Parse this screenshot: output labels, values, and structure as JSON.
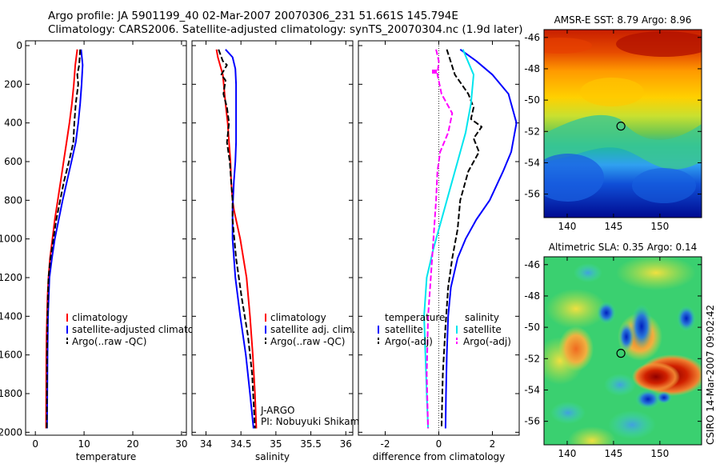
{
  "header": {
    "line1": "Argo profile: JA 5901199_40 02-Mar-2007 20070306_231 51.661S 145.794E",
    "line2": "Climatology: CARS2006. Satellite-adjusted climatology: synTS_20070304.nc (1.9d later)"
  },
  "side_text": "CSIRO 14-Mar-2007 09:02:42",
  "colors": {
    "red": "#ff0000",
    "blue": "#0000ff",
    "black": "#000000",
    "cyan": "#00e5ee",
    "magenta": "#ff00ff"
  },
  "chart_data": [
    {
      "type": "line",
      "xlabel": "temperature",
      "ylabel": "",
      "xlim": [
        -2,
        31
      ],
      "ylim": [
        2000,
        0
      ],
      "y_reversed": true,
      "xticks": [
        0,
        10,
        20,
        30
      ],
      "yticks": [
        0,
        200,
        400,
        600,
        800,
        1000,
        1200,
        1400,
        1600,
        1800,
        2000
      ],
      "ytick_labels": [
        "0",
        "200",
        "400",
        "600",
        "800",
        "1000",
        "1200",
        "1400",
        "1600",
        "1800",
        "2000"
      ],
      "legend": {
        "position": "bottom-right",
        "entries": [
          "climatology",
          "satellite-adjusted climatology",
          "Argo(..raw -QC)"
        ]
      },
      "series": [
        {
          "name": "climatology",
          "color": "red",
          "style": "solid",
          "x": [
            8.6,
            8.2,
            7.9,
            7.5,
            7.0,
            6.4,
            5.8,
            5.2,
            4.6,
            4.0,
            3.5,
            3.0,
            2.7,
            2.5,
            2.4,
            2.3,
            2.25,
            2.2
          ],
          "y": [
            20,
            100,
            200,
            300,
            400,
            500,
            600,
            700,
            800,
            900,
            1000,
            1100,
            1200,
            1300,
            1400,
            1500,
            1600,
            1980
          ]
        },
        {
          "name": "satellite-adjusted climatology",
          "color": "blue",
          "style": "solid",
          "x": [
            9.4,
            9.7,
            9.5,
            9.2,
            8.8,
            8.3,
            7.4,
            6.5,
            5.6,
            4.8,
            4.0,
            3.4,
            2.9,
            2.6,
            2.5,
            2.45,
            2.4
          ],
          "y": [
            20,
            100,
            200,
            300,
            400,
            500,
            600,
            700,
            800,
            900,
            1000,
            1100,
            1200,
            1400,
            1600,
            1800,
            1980
          ]
        },
        {
          "name": "Argo(..raw -QC)",
          "color": "black",
          "style": "dashed",
          "x": [
            9.2,
            9.0,
            8.6,
            8.8,
            8.3,
            8.0,
            7.8,
            6.9,
            5.9,
            5.1,
            4.3,
            3.7,
            3.1,
            2.7,
            2.5,
            2.4,
            2.35
          ],
          "y": [
            20,
            100,
            150,
            200,
            300,
            400,
            500,
            600,
            700,
            800,
            900,
            1000,
            1100,
            1200,
            1400,
            1600,
            1980
          ]
        }
      ]
    },
    {
      "type": "line",
      "xlabel": "salinity",
      "xlim": [
        33.8,
        36.1
      ],
      "ylim": [
        2000,
        0
      ],
      "y_reversed": true,
      "xticks": [
        34,
        34.5,
        35,
        35.5,
        36
      ],
      "legend": {
        "position": "bottom-right",
        "entries": [
          "climatology",
          "satellite adj. clim.",
          "Argo(..raw -QC)"
        ]
      },
      "annotation": [
        "J-ARGO",
        "PI: Nobuyuki Shikama"
      ],
      "series": [
        {
          "name": "climatology",
          "color": "red",
          "style": "solid",
          "x": [
            34.15,
            34.17,
            34.24,
            34.28,
            34.31,
            34.33,
            34.35,
            34.36,
            34.38,
            34.4,
            34.49,
            34.58,
            34.63,
            34.67,
            34.7,
            34.72
          ],
          "y": [
            20,
            60,
            150,
            300,
            400,
            500,
            600,
            700,
            800,
            850,
            1000,
            1200,
            1400,
            1600,
            1800,
            1980
          ]
        },
        {
          "name": "satellite adj. clim.",
          "color": "blue",
          "style": "solid",
          "x": [
            34.28,
            34.38,
            34.42,
            34.43,
            34.43,
            34.43,
            34.43,
            34.42,
            34.4,
            34.38,
            34.38,
            34.42,
            34.49,
            34.57,
            34.63,
            34.68
          ],
          "y": [
            20,
            60,
            120,
            200,
            300,
            400,
            500,
            600,
            700,
            850,
            1000,
            1200,
            1400,
            1600,
            1800,
            1980
          ]
        },
        {
          "name": "Argo(..raw -QC)",
          "color": "black",
          "style": "dashed",
          "x": [
            34.18,
            34.24,
            34.3,
            34.22,
            34.28,
            34.25,
            34.3,
            34.33,
            34.3,
            34.34,
            34.36,
            34.38,
            34.38,
            34.43,
            34.51,
            34.6,
            34.66,
            34.7
          ],
          "y": [
            20,
            80,
            100,
            150,
            180,
            250,
            320,
            400,
            500,
            600,
            700,
            800,
            900,
            1100,
            1300,
            1500,
            1700,
            1980
          ]
        }
      ]
    },
    {
      "type": "line",
      "xlabel": "difference from climatology",
      "xlim": [
        -3,
        3
      ],
      "ylim": [
        2000,
        0
      ],
      "y_reversed": true,
      "xticks": [
        -2,
        0,
        2
      ],
      "zero_line": "dotted",
      "legend": {
        "position": "bottom",
        "titles": [
          "temperature",
          "salinity"
        ],
        "entries": [
          "satellite",
          "Argo(-adj)",
          "satellite",
          "Argo(-adj)"
        ]
      },
      "series": [
        {
          "name": "temperature satellite",
          "color": "blue",
          "style": "solid",
          "x": [
            0.8,
            1.4,
            2.0,
            2.6,
            2.9,
            2.7,
            2.4,
            1.9,
            1.4,
            1.0,
            0.7,
            0.45,
            0.35,
            0.3,
            0.27,
            0.25
          ],
          "y": [
            20,
            80,
            150,
            250,
            400,
            550,
            650,
            800,
            900,
            1000,
            1100,
            1250,
            1400,
            1600,
            1800,
            1980
          ]
        },
        {
          "name": "temperature Argo(-adj)",
          "color": "black",
          "style": "dashed",
          "x": [
            0.3,
            0.6,
            1.1,
            1.3,
            1.2,
            1.6,
            1.3,
            1.5,
            1.1,
            0.8,
            0.7,
            0.5,
            0.35,
            0.25,
            0.15,
            0.1
          ],
          "y": [
            20,
            150,
            250,
            320,
            380,
            420,
            480,
            550,
            650,
            800,
            950,
            1100,
            1250,
            1450,
            1700,
            1980
          ]
        },
        {
          "name": "salinity satellite",
          "color": "cyan",
          "style": "solid",
          "x": [
            0.9,
            1.3,
            1.2,
            1.0,
            0.7,
            0.4,
            0.1,
            -0.2,
            -0.45,
            -0.55,
            -0.5,
            -0.45,
            -0.4
          ],
          "y": [
            20,
            150,
            300,
            450,
            600,
            750,
            900,
            1050,
            1200,
            1400,
            1600,
            1800,
            1980
          ]
        },
        {
          "name": "salinity Argo(-adj)",
          "color": "magenta",
          "style": "dashed",
          "x": [
            -0.1,
            0.0,
            -0.05,
            0.1,
            0.5,
            0.35,
            0.05,
            -0.05,
            -0.1,
            -0.2,
            -0.3,
            -0.4,
            -0.45,
            -0.4
          ],
          "y": [
            20,
            80,
            150,
            250,
            350,
            450,
            550,
            650,
            800,
            1000,
            1200,
            1400,
            1700,
            1980
          ]
        }
      ]
    },
    {
      "type": "heatmap",
      "title": "AMSR-E SST: 8.79 Argo: 8.96",
      "xlim": [
        137.5,
        154.5
      ],
      "ylim": [
        -57.5,
        -45.5
      ],
      "xticks": [
        140,
        145,
        150
      ],
      "xtick_labels": [
        "140",
        "145",
        "150"
      ],
      "yticks": [
        -46,
        -48,
        -50,
        -52,
        -54,
        -56
      ],
      "ytick_labels": [
        "-46",
        "-48",
        "-50",
        "-52",
        "-54",
        "-56"
      ],
      "marker": {
        "lon": 145.794,
        "lat": -51.661
      }
    },
    {
      "type": "heatmap",
      "title": "Altimetric SLA: 0.35 Argo: 0.14",
      "xlim": [
        137.5,
        154.5
      ],
      "ylim": [
        -57.5,
        -45.5
      ],
      "xticks": [
        140,
        145,
        150
      ],
      "xtick_labels": [
        "140",
        "145",
        "150"
      ],
      "yticks": [
        -46,
        -48,
        -50,
        -52,
        -54,
        -56
      ],
      "ytick_labels": [
        "-46",
        "-48",
        "-50",
        "-52",
        "-54",
        "-56"
      ],
      "marker": {
        "lon": 145.794,
        "lat": -51.661
      }
    }
  ]
}
